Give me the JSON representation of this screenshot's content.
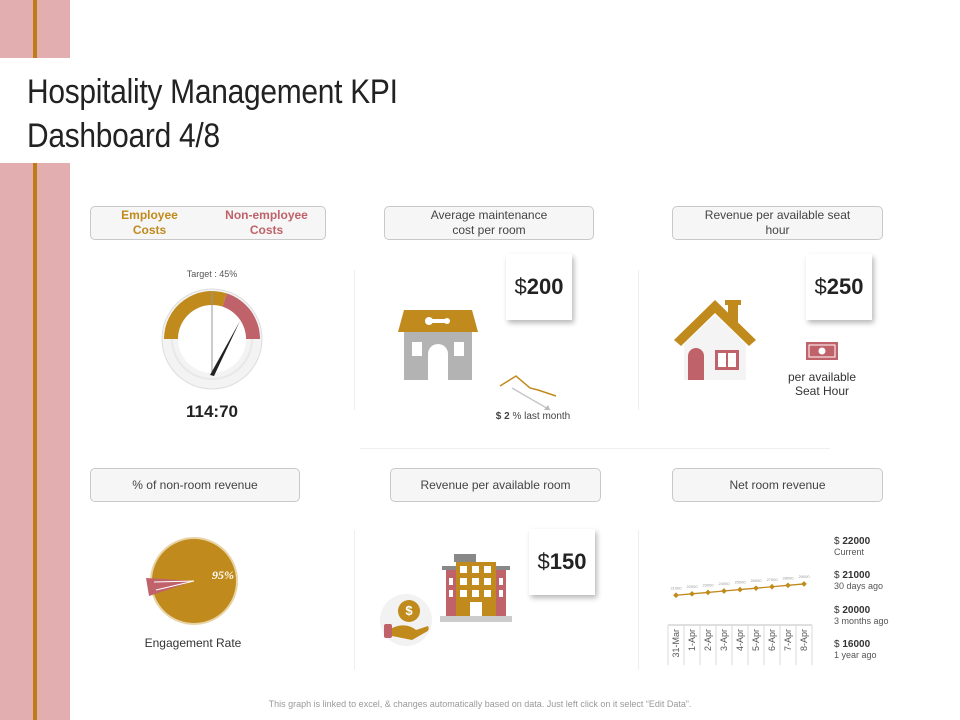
{
  "slide": {
    "title_line1": "Hospitality Management KPI",
    "title_line2": "Dashboard 4/8",
    "footer": "This graph is linked to excel, & changes automatically based on data. Just left click on it select “Edit Data”."
  },
  "colors": {
    "gold": "#c08a1c",
    "rose": "#c0626a",
    "sidebar": "#e2aeb0",
    "gray": "#b3b3b3"
  },
  "costs_panel": {
    "employee_label_1": "Employee",
    "employee_label_2": "Costs",
    "nonemployee_label_1": "Non-employee",
    "nonemployee_label_2": "Costs",
    "target_label": "Target : 45%",
    "target_percent": 45,
    "ratio": "114:70"
  },
  "maintenance_panel": {
    "header_1": "Average maintenance",
    "header_2": "cost per room",
    "currency": "$",
    "value": "200",
    "change_currency": "$",
    "change_value": "2",
    "change_text": "% last month"
  },
  "seat_hour_panel": {
    "header_1": "Revenue per available seat",
    "header_2": "hour",
    "currency": "$",
    "value": "250",
    "caption_1": "per available",
    "caption_2": "Seat Hour"
  },
  "nonroom_panel": {
    "header": "% of non-room revenue",
    "pie_label": "95%",
    "caption": "Engagement Rate"
  },
  "revpar_panel": {
    "header": "Revenue per available room",
    "currency": "$",
    "value": "150",
    "coin_symbol": "$"
  },
  "net_room_panel": {
    "header": "Net room revenue",
    "legend": [
      {
        "value": "22000",
        "label": "Current"
      },
      {
        "value": "21000",
        "label": "30 days ago"
      },
      {
        "value": "20000",
        "label": "3 months ago"
      },
      {
        "value": "16000",
        "label": "1 year ago"
      }
    ],
    "legend_currency": "$"
  },
  "chart_data": {
    "type": "line",
    "title": "Net room revenue",
    "xlabel": "",
    "ylabel": "",
    "categories": [
      "31-Mar",
      "1-Apr",
      "2-Apr",
      "3-Apr",
      "4-Apr",
      "5-Apr",
      "6-Apr",
      "7-Apr",
      "8-Apr"
    ],
    "values": [
      21000,
      22000,
      23000,
      24000,
      25000,
      26000,
      27000,
      28000,
      29000
    ],
    "ylim": [
      0,
      60000
    ],
    "grid": false,
    "legend": "none"
  }
}
